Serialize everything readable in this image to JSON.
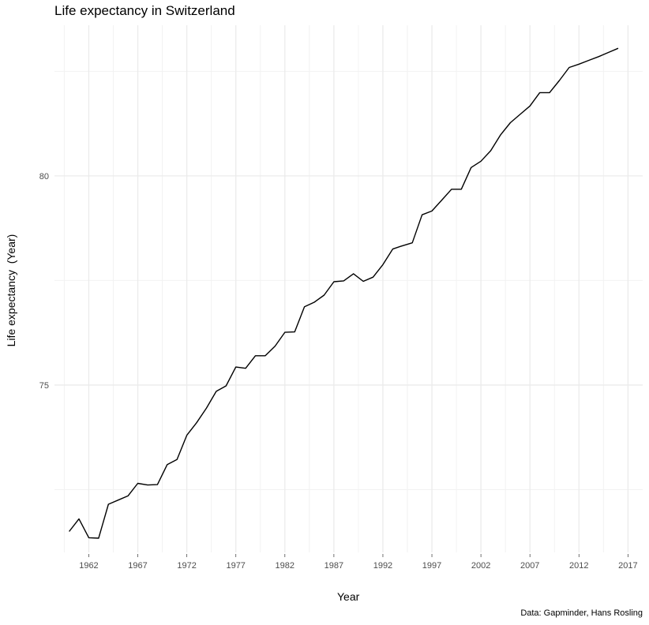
{
  "chart_data": {
    "type": "line",
    "title": "Life expectancy in Switzerland",
    "xlabel": "Year",
    "ylabel": "Life expectancy  (Year)",
    "caption": "Data: Gapminder, Hans Rosling",
    "x_ticks": [
      1962,
      1967,
      1972,
      1977,
      1982,
      1987,
      1992,
      1997,
      2002,
      2007,
      2012,
      2017
    ],
    "y_ticks": [
      75,
      80
    ],
    "xlim": [
      1958.5,
      2018.5
    ],
    "ylim": [
      71.0,
      83.6
    ],
    "grid": true,
    "legend": "none",
    "line_color": "#000000",
    "series": [
      {
        "x": [
          1960,
          1961,
          1962,
          1963,
          1964,
          1965,
          1966,
          1967,
          1968,
          1969,
          1970,
          1971,
          1972,
          1973,
          1974,
          1975,
          1976,
          1977,
          1978,
          1979,
          1980,
          1981,
          1982,
          1983,
          1984,
          1985,
          1986,
          1987,
          1988,
          1989,
          1990,
          1991,
          1992,
          1993,
          1994,
          1995,
          1996,
          1997,
          1998,
          1999,
          2000,
          2001,
          2002,
          2003,
          2004,
          2005,
          2006,
          2007,
          2008,
          2009,
          2010,
          2011,
          2012,
          2013,
          2014,
          2015,
          2016
        ],
        "values": [
          71.5,
          71.8,
          71.35,
          71.34,
          72.15,
          72.25,
          72.35,
          72.65,
          72.61,
          72.62,
          73.1,
          73.22,
          73.8,
          74.1,
          74.45,
          74.85,
          74.98,
          75.43,
          75.4,
          75.7,
          75.7,
          75.93,
          76.26,
          76.27,
          76.87,
          76.98,
          77.15,
          77.47,
          77.49,
          77.66,
          77.48,
          77.58,
          77.88,
          78.25,
          78.33,
          78.4,
          79.07,
          79.16,
          79.42,
          79.68,
          79.68,
          80.2,
          80.35,
          80.6,
          80.98,
          81.27,
          81.47,
          81.67,
          81.99,
          81.99,
          82.28,
          82.59,
          82.67,
          82.76,
          82.85,
          82.95,
          83.05
        ]
      }
    ]
  }
}
